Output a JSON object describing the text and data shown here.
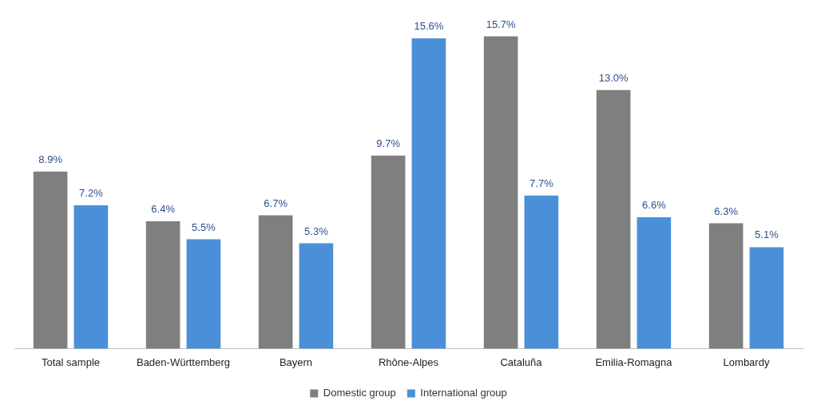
{
  "chart_data": {
    "type": "bar",
    "categories": [
      "Total sample",
      "Baden-Württemberg",
      "Bayern",
      "Rhône-Alpes",
      "Cataluña",
      "Emilia-Romagna",
      "Lombardy"
    ],
    "series": [
      {
        "name": "Domestic group",
        "color": "#7f7f7f",
        "values": [
          8.9,
          6.4,
          6.7,
          9.7,
          15.7,
          13.0,
          6.3
        ],
        "value_labels": [
          "8.9%",
          "6.4%",
          "6.7%",
          "9.7%",
          "15.7%",
          "13.0%",
          "6.3%"
        ]
      },
      {
        "name": "International group",
        "color": "#4a90d9",
        "values": [
          7.2,
          5.5,
          5.3,
          15.6,
          7.7,
          6.6,
          5.1
        ],
        "value_labels": [
          "7.2%",
          "5.5%",
          "5.3%",
          "15.6%",
          "7.7%",
          "6.6%",
          "5.1%"
        ]
      }
    ],
    "legend": "bottom",
    "grid": false
  }
}
